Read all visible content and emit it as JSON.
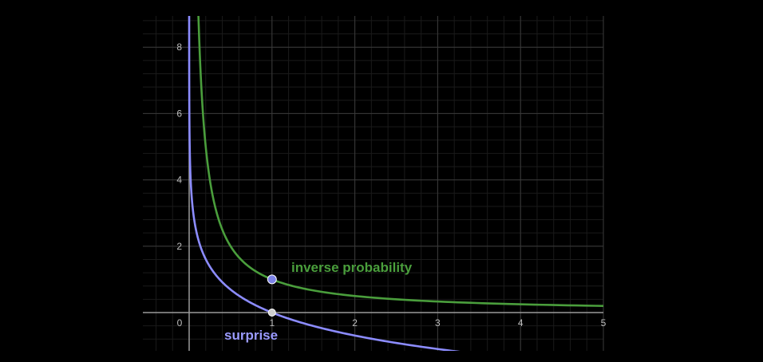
{
  "chart_data": {
    "type": "line",
    "title": "",
    "xlabel": "",
    "ylabel": "",
    "xlim": [
      -0.55,
      5
    ],
    "ylim": [
      -1.15,
      8.9
    ],
    "grid": true,
    "x_ticks": [
      0,
      1,
      2,
      3,
      4,
      5
    ],
    "x_tick_labels": [
      "0",
      "1",
      "2",
      "3",
      "4",
      "5"
    ],
    "y_ticks": [
      2,
      4,
      6,
      8
    ],
    "y_tick_labels": [
      "2",
      "4",
      "6",
      "8"
    ],
    "series": [
      {
        "name": "inverse probability",
        "formula": "y = 1/x",
        "color": "#4a9e3c",
        "x": [
          0.113,
          0.125,
          0.15,
          0.2,
          0.25,
          0.3,
          0.4,
          0.5,
          0.6,
          0.75,
          1,
          1.25,
          1.5,
          2,
          2.5,
          3,
          3.5,
          4,
          4.5,
          5
        ],
        "y": [
          8.85,
          8.0,
          6.67,
          5.0,
          4.0,
          3.33,
          2.5,
          2.0,
          1.67,
          1.33,
          1.0,
          0.8,
          0.67,
          0.5,
          0.4,
          0.33,
          0.29,
          0.25,
          0.22,
          0.2
        ]
      },
      {
        "name": "surprise",
        "formula": "y = -ln(x)",
        "color": "#8c8cff",
        "x": [
          0.00015,
          0.0003,
          0.0006,
          0.001,
          0.002,
          0.005,
          0.01,
          0.02,
          0.05,
          0.1,
          0.2,
          0.3,
          0.5,
          0.75,
          1,
          1.5,
          2,
          2.5,
          3,
          3.5,
          4,
          4.5,
          5
        ],
        "y": [
          8.8,
          8.11,
          7.42,
          6.91,
          6.21,
          5.3,
          4.61,
          3.91,
          3.0,
          2.3,
          1.61,
          1.2,
          0.69,
          0.29,
          0.0,
          -0.41,
          -0.69,
          -0.92,
          -1.1,
          -1.25,
          -1.39,
          -1.5,
          -1.61
        ]
      }
    ],
    "points": [
      {
        "name": "inverse-probability-point",
        "x": 1,
        "y": 1,
        "color": "#7b82e6"
      },
      {
        "name": "surprise-point",
        "x": 1,
        "y": 0,
        "color": "#cfcfcf"
      }
    ],
    "labels": {
      "inverse_probability": "inverse probability",
      "surprise": "surprise"
    }
  }
}
